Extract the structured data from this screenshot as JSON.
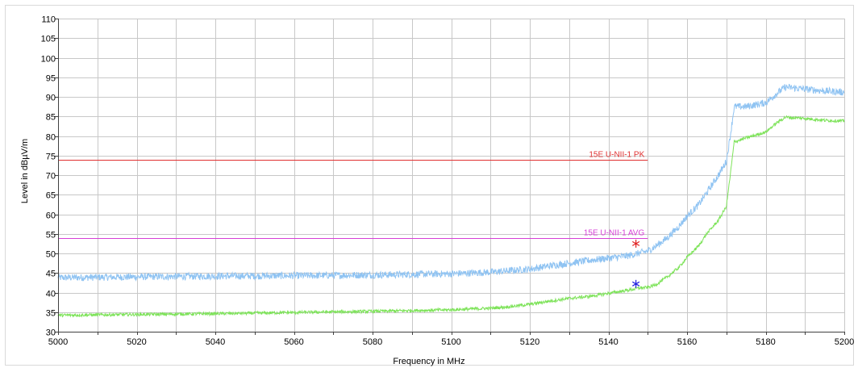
{
  "chart_data": {
    "type": "line",
    "xlabel": "Frequency in MHz",
    "ylabel": "Level in dBµV/m",
    "xlim": [
      5000,
      5200
    ],
    "ylim": [
      30,
      110
    ],
    "x_ticks": [
      5000,
      5020,
      5040,
      5060,
      5080,
      5100,
      5120,
      5140,
      5160,
      5180,
      5200
    ],
    "x_minor_step": 10,
    "y_ticks": [
      30,
      35,
      40,
      45,
      50,
      55,
      60,
      65,
      70,
      75,
      80,
      85,
      90,
      95,
      100,
      105,
      110
    ],
    "grid": true,
    "series": [
      {
        "color": "#8fc3f2",
        "noise": 0.9,
        "x": [
          5000,
          5020,
          5040,
          5060,
          5080,
          5100,
          5110,
          5120,
          5125,
          5130,
          5135,
          5140,
          5145,
          5150,
          5152,
          5155,
          5158,
          5160,
          5163,
          5165,
          5168,
          5170,
          5171,
          5172,
          5175,
          5180,
          5183,
          5185,
          5190,
          5195,
          5200
        ],
        "y": [
          43.8,
          44.0,
          44.2,
          44.3,
          44.5,
          44.8,
          45.2,
          46.0,
          46.8,
          47.5,
          48.2,
          48.8,
          49.4,
          50.6,
          51.8,
          54.0,
          57.0,
          59.5,
          62.5,
          65.5,
          70.0,
          73.5,
          80.0,
          87.5,
          87.5,
          88.5,
          91.0,
          92.5,
          92.0,
          91.5,
          91.2
        ]
      },
      {
        "color": "#7ee35a",
        "noise": 0.4,
        "x": [
          5000,
          5020,
          5040,
          5060,
          5080,
          5100,
          5110,
          5115,
          5120,
          5125,
          5130,
          5135,
          5140,
          5145,
          5148,
          5150,
          5152,
          5155,
          5158,
          5160,
          5163,
          5165,
          5168,
          5170,
          5171,
          5172,
          5175,
          5180,
          5183,
          5185,
          5190,
          5195,
          5200
        ],
        "y": [
          34.2,
          34.4,
          34.6,
          34.9,
          35.2,
          35.6,
          36.0,
          36.4,
          37.0,
          37.8,
          38.5,
          39.0,
          39.8,
          40.6,
          41.2,
          41.3,
          42.0,
          44.0,
          46.5,
          49.0,
          52.0,
          55.0,
          58.5,
          62.0,
          70.0,
          78.5,
          79.5,
          81.0,
          83.5,
          84.8,
          84.5,
          84.0,
          83.8
        ]
      }
    ],
    "limit_lines": [
      {
        "label": "15E U-NII-1 PK",
        "y": 74,
        "x_end": 5150,
        "color": "#e03030",
        "label_color": "#e03030"
      },
      {
        "label": "15E U-NII-1 AVG",
        "y": 54,
        "x_end": 5150,
        "color": "#d640d6",
        "label_color": "#d640d6"
      }
    ],
    "markers": [
      {
        "x": 5147,
        "y": 52.5,
        "color": "#e02020"
      },
      {
        "x": 5147,
        "y": 42.2,
        "color": "#2020e0"
      }
    ]
  }
}
